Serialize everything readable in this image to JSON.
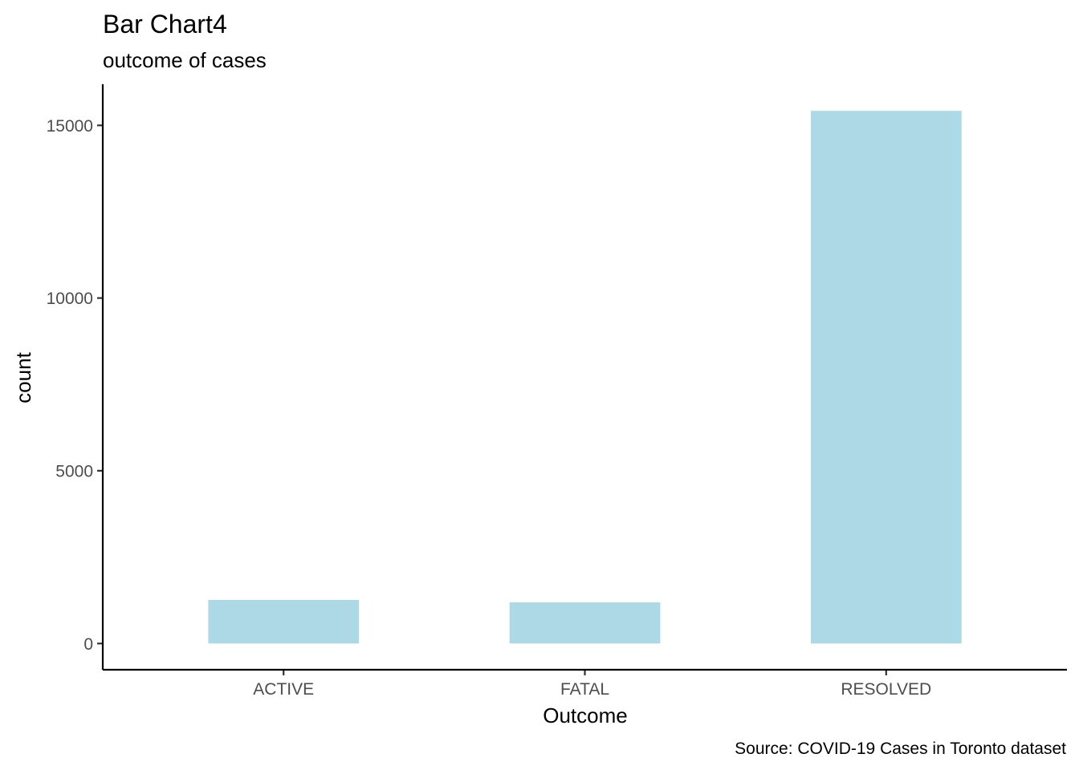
{
  "chart_data": {
    "type": "bar",
    "title": "Bar Chart4",
    "subtitle": "outcome of cases",
    "xlabel": "Outcome",
    "ylabel": "count",
    "caption": "Source: COVID-19 Cases in Toronto dataset",
    "categories": [
      "ACTIVE",
      "FATAL",
      "RESOLVED"
    ],
    "values": [
      1260,
      1190,
      15420
    ],
    "yticks": [
      0,
      5000,
      10000,
      15000
    ],
    "ylim": [
      -760,
      16190
    ],
    "bar_color": "#add8e6",
    "grid": false,
    "legend": "none"
  }
}
